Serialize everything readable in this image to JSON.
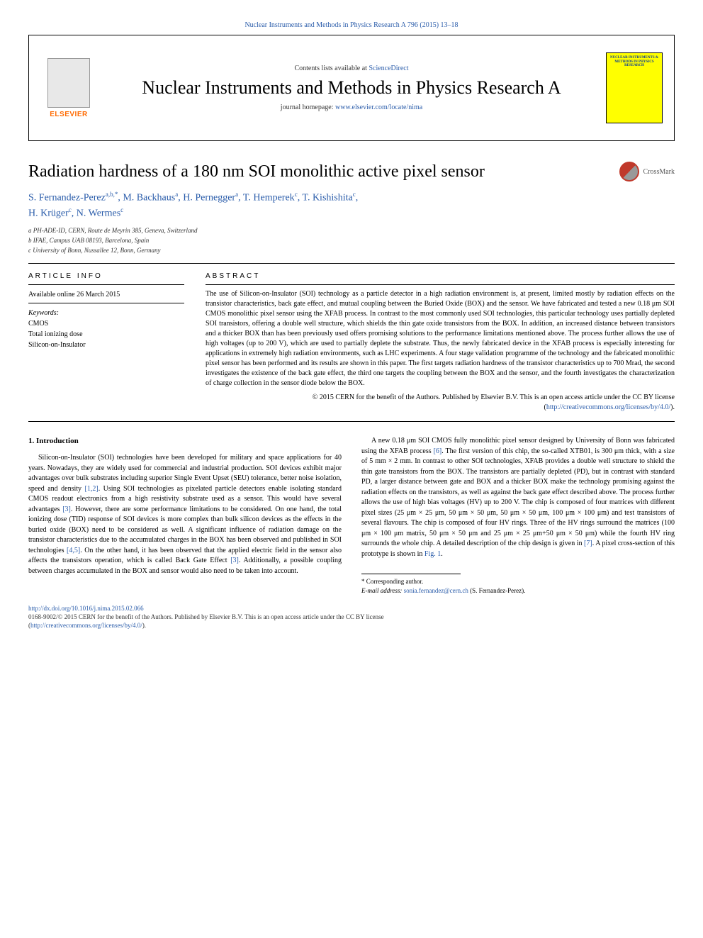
{
  "top_link": {
    "citation": "Nuclear Instruments and Methods in Physics Research A 796 (2015) 13–18"
  },
  "header": {
    "contents_prefix": "Contents lists available at ",
    "contents_link": "ScienceDirect",
    "journal_title": "Nuclear Instruments and Methods in Physics Research A",
    "homepage_prefix": "journal homepage: ",
    "homepage_url": "www.elsevier.com/locate/nima",
    "elsevier_label": "ELSEVIER",
    "cover_text": "NUCLEAR INSTRUMENTS & METHODS IN PHYSICS RESEARCH"
  },
  "crossmark_label": "CrossMark",
  "article": {
    "title": "Radiation hardness of a 180 nm SOI monolithic active pixel sensor",
    "authors_line1": "S. Fernandez-Perez",
    "authors_sup1": "a,b,*",
    "authors_sep1": ", M. Backhaus",
    "authors_sup2": "a",
    "authors_sep2": ", H. Pernegger",
    "authors_sup3": "a",
    "authors_sep3": ", T. Hemperek",
    "authors_sup4": "c",
    "authors_sep4": ", T. Kishishita",
    "authors_sup5": "c",
    "authors_sep5": ",",
    "authors_line2": "H. Krüger",
    "authors_sup6": "c",
    "authors_sep6": ", N. Wermes",
    "authors_sup7": "c",
    "affiliations": {
      "a": "a PH-ADE-ID, CERN, Route de Meyrin 385, Geneva, Switzerland",
      "b": "b IFAE, Campus UAB 08193, Barcelona, Spain",
      "c": "c University of Bonn, Nussallee 12, Bonn, Germany"
    }
  },
  "info": {
    "heading": "ARTICLE INFO",
    "available": "Available online 26 March 2015",
    "keywords_label": "Keywords:",
    "keywords": [
      "CMOS",
      "Total ionizing dose",
      "Silicon-on-Insulator"
    ]
  },
  "abstract": {
    "heading": "ABSTRACT",
    "text": "The use of Silicon-on-Insulator (SOI) technology as a particle detector in a high radiation environment is, at present, limited mostly by radiation effects on the transistor characteristics, back gate effect, and mutual coupling between the Buried Oxide (BOX) and the sensor. We have fabricated and tested a new 0.18 μm SOI CMOS monolithic pixel sensor using the XFAB process. In contrast to the most commonly used SOI technologies, this particular technology uses partially depleted SOI transistors, offering a double well structure, which shields the thin gate oxide transistors from the BOX. In addition, an increased distance between transistors and a thicker BOX than has been previously used offers promising solutions to the performance limitations mentioned above. The process further allows the use of high voltages (up to 200 V), which are used to partially deplete the substrate. Thus, the newly fabricated device in the XFAB process is especially interesting for applications in extremely high radiation environments, such as LHC experiments. A four stage validation programme of the technology and the fabricated monolithic pixel sensor has been performed and its results are shown in this paper. The first targets radiation hardness of the transistor characteristics up to 700 Mrad, the second investigates the existence of the back gate effect, the third one targets the coupling between the BOX and the sensor, and the fourth investigates the characterization of charge collection in the sensor diode below the BOX.",
    "copyright": "© 2015 CERN for the benefit of the Authors. Published by Elsevier B.V. This is an open access article under the CC BY license (",
    "cc_url": "http://creativecommons.org/licenses/by/4.0/",
    "copyright_close": ")."
  },
  "section1": {
    "heading": "1. Introduction",
    "p1_a": "Silicon-on-Insulator (SOI) technologies have been developed for military and space applications for 40 years. Nowadays, they are widely used for commercial and industrial production. SOI devices exhibit major advantages over bulk substrates including superior Single Event Upset (SEU) tolerance, better noise isolation, speed and density ",
    "ref12": "[1,2]",
    "p1_b": ". Using SOI technologies as pixelated particle detectors enable isolating standard CMOS readout electronics from a high resistivity substrate used as a sensor. This would have several advantages ",
    "ref3": "[3]",
    "p1_c": ". However, there are some performance limitations to be considered. On one hand, the total ionizing dose (TID) response of SOI devices is more complex than bulk silicon devices as the effects in the buried oxide (BOX) need to be considered as well. A significant influence of radiation damage on the transistor characteristics due to the accumulated charges in the BOX has been observed and published in SOI technologies ",
    "ref45": "[4,5]",
    "p1_d": ". On the other hand, it has been observed that the applied electric field in the sensor also affects the transistors operation, which is called Back Gate Effect ",
    "ref3b": "[3]",
    "p1_e": ". Additionally, a possible coupling between charges accumulated in the BOX and sensor would also need to be taken into account.",
    "p2_a": "A new 0.18 μm SOI CMOS fully monolithic pixel sensor designed by University of Bonn was fabricated using the XFAB process ",
    "ref6": "[6]",
    "p2_b": ". The first version of this chip, the so-called XTB01, is 300 μm thick, with a size of 5 mm × 2 mm. In contrast to other SOI technologies, XFAB provides a double well structure to shield the thin gate transistors from the BOX. The transistors are partially depleted (PD), but in contrast with standard PD, a larger distance between gate and BOX and a thicker BOX make the technology promising against the radiation effects on the transistors, as well as against the back gate effect described above. The process further allows the use of high bias voltages (HV) up to 200 V. The chip is composed of four matrices with different pixel sizes (25 μm × 25 μm, 50 μm × 50 μm, 50 μm × 50 μm, 100 μm × 100 μm) and test transistors of several flavours. The chip is composed of four HV rings. Three of the HV rings surround the matrices (100 μm × 100 μm matrix, 50 μm × 50 μm and 25 μm × 25 μm+50 μm × 50 μm) while the fourth HV ring surrounds the whole chip. A detailed description of the chip design is given in ",
    "ref7": "[7]",
    "p2_c": ". A pixel cross-section of this prototype is shown in ",
    "fig1": "Fig. 1",
    "p2_d": "."
  },
  "footnotes": {
    "corr": "* Corresponding author.",
    "email_label": "E-mail address: ",
    "email": "sonia.fernandez@cern.ch",
    "email_suffix": " (S. Fernandez-Perez)."
  },
  "bottom": {
    "doi": "http://dx.doi.org/10.1016/j.nima.2015.02.066",
    "issn_line": "0168-9002/© 2015 CERN for the benefit of the Authors. Published by Elsevier B.V. This is an open access article under the CC BY license",
    "cc_open": "(",
    "cc_url": "http://creativecommons.org/licenses/by/4.0/",
    "cc_close": ")."
  }
}
